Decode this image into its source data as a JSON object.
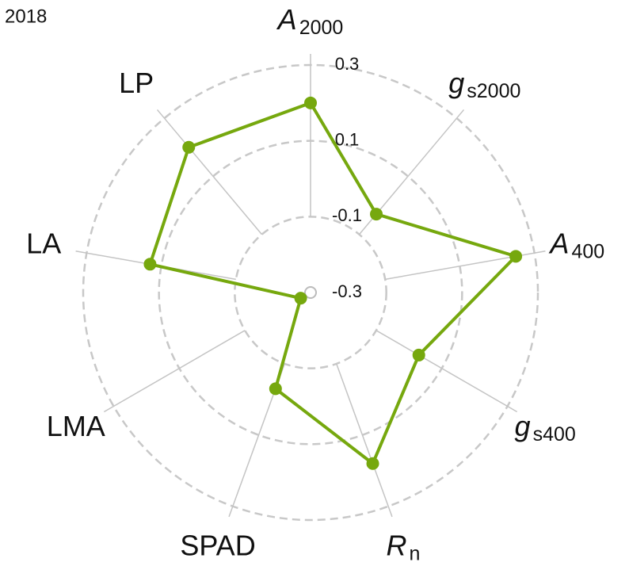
{
  "chart_data": {
    "type": "radar",
    "title": "2018",
    "axes": [
      {
        "text": "A",
        "sub": "2000"
      },
      {
        "text": "g",
        "sub": "s2000"
      },
      {
        "text": "A",
        "sub": "400"
      },
      {
        "text": "g",
        "sub": "s400"
      },
      {
        "text": "R",
        "sub": "n"
      },
      {
        "text": "SPAD"
      },
      {
        "text": "LMA"
      },
      {
        "text": "LA"
      },
      {
        "text": "LP"
      }
    ],
    "values": [
      0.2,
      -0.03,
      0.25,
      0.03,
      0.18,
      -0.03,
      -0.27,
      0.13,
      0.2
    ],
    "color": "#76a80e",
    "rlim": [
      -0.3,
      0.3
    ],
    "rticks": [
      -0.3,
      -0.1,
      0.1,
      0.3
    ],
    "grid": true
  }
}
